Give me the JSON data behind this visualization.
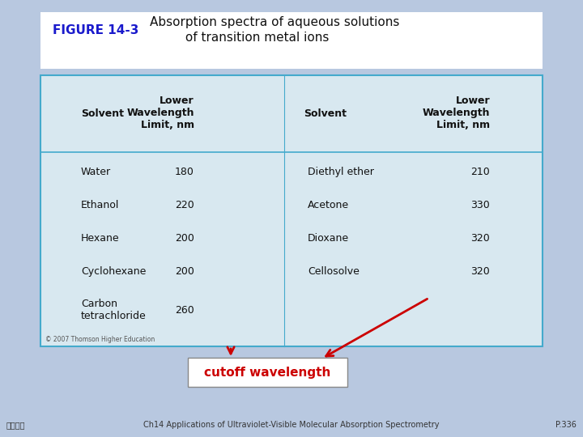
{
  "background_color": "#b8c8e0",
  "title_figure": "FIGURE 14-3",
  "title_text": "Absorption spectra of aqueous solutions\n         of transition metal ions",
  "title_figure_color": "#1a1acc",
  "title_text_color": "#111111",
  "table_bg": "#d8e8f0",
  "table_border_color": "#44aacc",
  "header_col1": "Solvent",
  "header_col2": "Lower\nWavelength\nLimit, nm",
  "header_col3": "Solvent",
  "header_col4": "Lower\nWavelength\nLimit, nm",
  "data_rows": [
    [
      "Water",
      "180",
      "Diethyl ether",
      "210"
    ],
    [
      "Ethanol",
      "220",
      "Acetone",
      "330"
    ],
    [
      "Hexane",
      "200",
      "Dioxane",
      "320"
    ],
    [
      "Cyclohexane",
      "200",
      "Cellosolve",
      "320"
    ],
    [
      "Carbon\ntetrachloride",
      "260",
      "",
      ""
    ]
  ],
  "copyright_text": "© 2007 Thomson Higher Education",
  "annotation_text": "cutoff wavelength",
  "annotation_color": "#cc0000",
  "footer_left": "歐亞書局",
  "footer_center": "Ch14 Applications of Ultraviolet-Visible Molecular Absorption Spectrometry",
  "footer_right": "P.336",
  "footer_color": "#333333"
}
